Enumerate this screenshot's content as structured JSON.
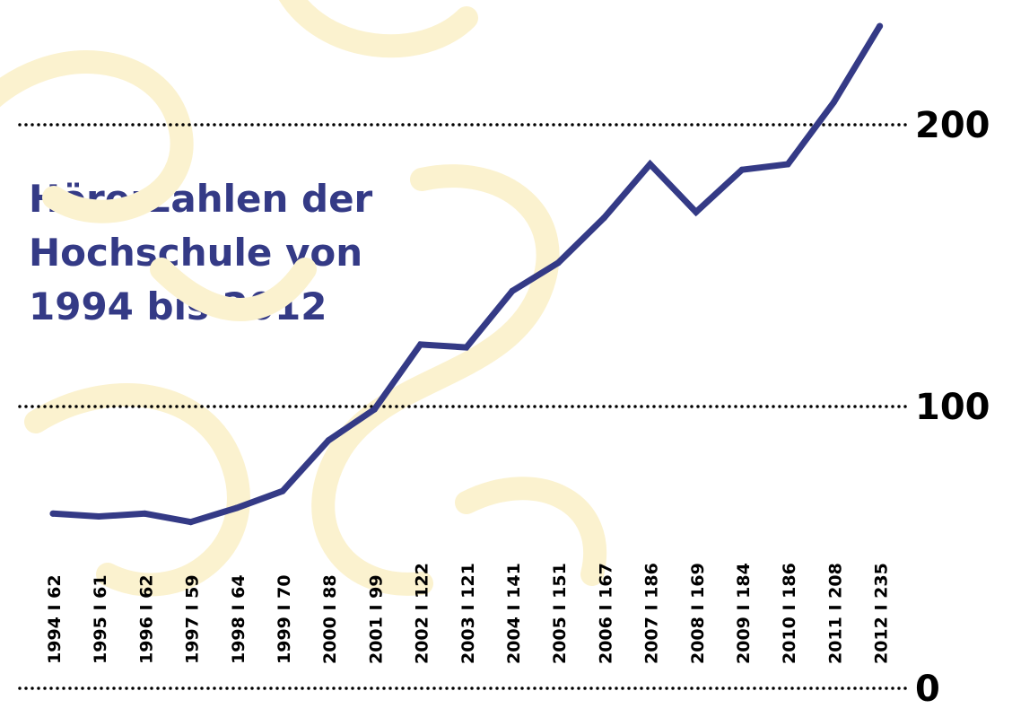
{
  "title_lines": [
    "Hörerzahlen der",
    "Hochschule von",
    "1994 bis 2012"
  ],
  "colors": {
    "line": "#343a86",
    "grid": "#000000",
    "watermark": "#fbf2cf",
    "background": "#ffffff"
  },
  "watermark_icon": "ornamental-pattern",
  "chart_data": {
    "type": "line",
    "title": "Hörerzahlen der Hochschule von 1994 bis 2012",
    "xlabel": "",
    "ylabel": "",
    "ylim": [
      0,
      200
    ],
    "gridlines": [
      0,
      100,
      200
    ],
    "grid_style": "dotted",
    "categories": [
      1994,
      1995,
      1996,
      1997,
      1998,
      1999,
      2000,
      2001,
      2002,
      2003,
      2004,
      2005,
      2006,
      2007,
      2008,
      2009,
      2010,
      2011,
      2012
    ],
    "x_tick_labels": [
      "1994 I 62",
      "1995 I 61",
      "1996 I 62",
      "1997 I 59",
      "1998 I 64",
      "1999 I 70",
      "2000 I 88",
      "2001 I 99",
      "2002 I 122",
      "2003 I 121",
      "2004 I 141",
      "2005 I 151",
      "2006 I 167",
      "2007 I 186",
      "2008 I 169",
      "2009 I 184",
      "2010 I 186",
      "2011 I 208",
      "2012 I 235"
    ],
    "y_tick_labels": [
      "0",
      "100",
      "200"
    ],
    "values": [
      62,
      61,
      62,
      59,
      64,
      70,
      88,
      99,
      122,
      121,
      141,
      151,
      167,
      186,
      169,
      184,
      186,
      208,
      235
    ]
  }
}
